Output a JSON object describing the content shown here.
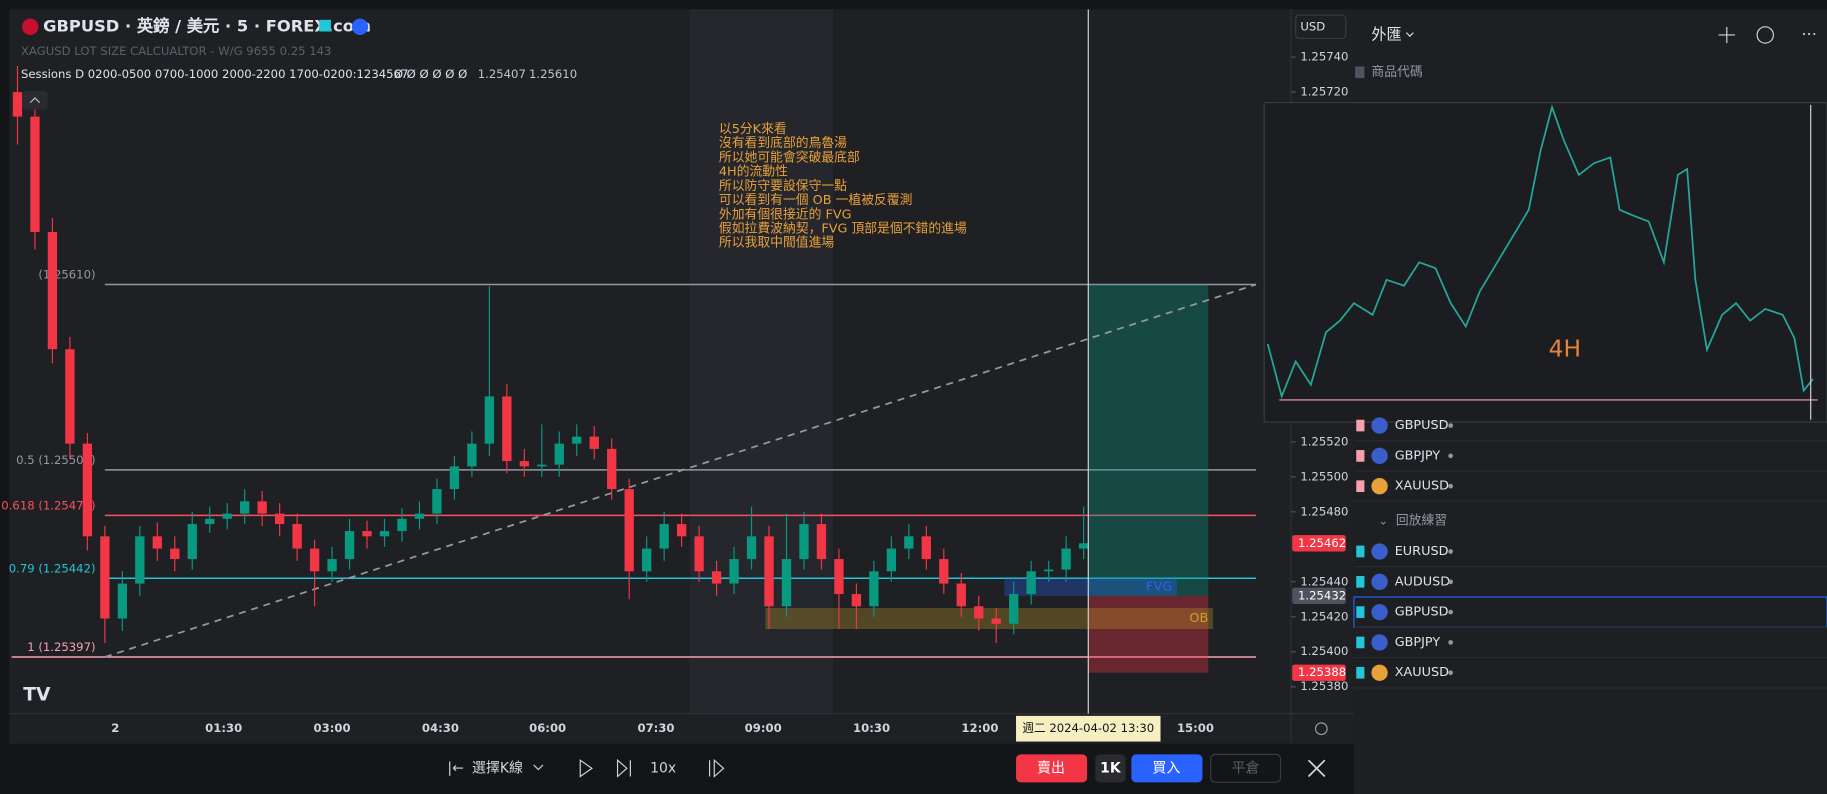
{
  "header": {
    "symbol": "GBPUSD · 英鎊 / 美元 · 5 · FOREX.com",
    "indicator": "XAGUSD LOT SIZE CALCUALTOR - W/G 9655 0.25 143",
    "sessions": "Sessions D 0200-0500 0700-1000 2000-2200 1700-0200:1234567",
    "sessions_flags": "Ø Ø Ø Ø Ø Ø",
    "sessions_low": "1.25407",
    "sessions_high": "1.25610"
  },
  "chart": {
    "currency": "USD",
    "price_ticks": [
      {
        "value": 1.2574,
        "label": "1.25740"
      },
      {
        "value": 1.2572,
        "label": "1.25720"
      },
      {
        "value": 1.2552,
        "label": "1.25520"
      },
      {
        "value": 1.255,
        "label": "1.25500"
      },
      {
        "value": 1.2548,
        "label": "1.25480"
      },
      {
        "value": 1.2544,
        "label": "1.25440"
      },
      {
        "value": 1.2542,
        "label": "1.25420"
      },
      {
        "value": 1.254,
        "label": "1.25400"
      },
      {
        "value": 1.2538,
        "label": "1.25380"
      }
    ],
    "price_badges": [
      {
        "value": 1.25462,
        "label": "1.25462",
        "color": "#f23645"
      },
      {
        "value": 1.25432,
        "label": "1.25432",
        "color": "#50535e"
      },
      {
        "value": 1.25388,
        "label": "1.25388",
        "color": "#f23645"
      }
    ],
    "time_labels": [
      "2",
      "01:30",
      "03:00",
      "04:30",
      "06:00",
      "07:30",
      "09:00",
      "10:30",
      "12:00",
      "15:00"
    ],
    "crosshair_label": "週二 2024-04-02   13:30",
    "candles": [
      [
        1.2572,
        1.25735,
        1.2569,
        1.25706
      ],
      [
        1.25706,
        1.25712,
        1.2563,
        1.2564
      ],
      [
        1.2564,
        1.25648,
        1.25565,
        1.25573
      ],
      [
        1.25573,
        1.2558,
        1.2551,
        1.25519
      ],
      [
        1.25519,
        1.25525,
        1.25458,
        1.25466
      ],
      [
        1.25466,
        1.25472,
        1.25405,
        1.25419
      ],
      [
        1.25419,
        1.25446,
        1.25412,
        1.25439
      ],
      [
        1.25439,
        1.25472,
        1.25432,
        1.25466
      ],
      [
        1.25466,
        1.25474,
        1.25452,
        1.25459
      ],
      [
        1.25459,
        1.25466,
        1.25446,
        1.25453
      ],
      [
        1.25453,
        1.2548,
        1.25447,
        1.25473
      ],
      [
        1.25473,
        1.25483,
        1.25468,
        1.25476
      ],
      [
        1.25476,
        1.25485,
        1.2547,
        1.25479
      ],
      [
        1.25479,
        1.25493,
        1.25473,
        1.25486
      ],
      [
        1.25486,
        1.25492,
        1.25472,
        1.25479
      ],
      [
        1.25479,
        1.25485,
        1.25466,
        1.25473
      ],
      [
        1.25473,
        1.25479,
        1.25452,
        1.25459
      ],
      [
        1.25459,
        1.25464,
        1.25426,
        1.25446
      ],
      [
        1.25446,
        1.2546,
        1.2544,
        1.25453
      ],
      [
        1.25453,
        1.25476,
        1.25447,
        1.25469
      ],
      [
        1.25469,
        1.25475,
        1.25459,
        1.25466
      ],
      [
        1.25466,
        1.25476,
        1.2546,
        1.25469
      ],
      [
        1.25469,
        1.25482,
        1.25463,
        1.25476
      ],
      [
        1.25476,
        1.25486,
        1.2547,
        1.25479
      ],
      [
        1.25479,
        1.25499,
        1.25473,
        1.25493
      ],
      [
        1.25493,
        1.25512,
        1.25487,
        1.25506
      ],
      [
        1.25506,
        1.25526,
        1.255,
        1.25519
      ],
      [
        1.25519,
        1.25609,
        1.25512,
        1.25546
      ],
      [
        1.25546,
        1.25553,
        1.25502,
        1.25509
      ],
      [
        1.25509,
        1.25516,
        1.255,
        1.25506
      ],
      [
        1.25506,
        1.2553,
        1.255,
        1.25507
      ],
      [
        1.25507,
        1.25526,
        1.255,
        1.25519
      ],
      [
        1.25519,
        1.2553,
        1.25512,
        1.25523
      ],
      [
        1.25523,
        1.25529,
        1.2551,
        1.25516
      ],
      [
        1.25516,
        1.25522,
        1.25487,
        1.25493
      ],
      [
        1.25493,
        1.25499,
        1.2543,
        1.25446
      ],
      [
        1.25446,
        1.25466,
        1.2544,
        1.25459
      ],
      [
        1.25459,
        1.2548,
        1.25452,
        1.25473
      ],
      [
        1.25473,
        1.25479,
        1.2546,
        1.25466
      ],
      [
        1.25466,
        1.25472,
        1.2544,
        1.25446
      ],
      [
        1.25446,
        1.25452,
        1.25432,
        1.25439
      ],
      [
        1.25439,
        1.2546,
        1.25433,
        1.25453
      ],
      [
        1.25453,
        1.25483,
        1.25447,
        1.25466
      ],
      [
        1.25466,
        1.25472,
        1.25413,
        1.25426
      ],
      [
        1.25426,
        1.25479,
        1.2542,
        1.25453
      ],
      [
        1.25453,
        1.2548,
        1.25447,
        1.25473
      ],
      [
        1.25473,
        1.25479,
        1.25447,
        1.25453
      ],
      [
        1.25453,
        1.25459,
        1.25413,
        1.25433
      ],
      [
        1.25433,
        1.25439,
        1.25413,
        1.25426
      ],
      [
        1.25426,
        1.25452,
        1.2542,
        1.25446
      ],
      [
        1.25446,
        1.25466,
        1.2544,
        1.25459
      ],
      [
        1.25459,
        1.25473,
        1.25453,
        1.25466
      ],
      [
        1.25466,
        1.25472,
        1.25447,
        1.25453
      ],
      [
        1.25453,
        1.25459,
        1.25433,
        1.25439
      ],
      [
        1.25439,
        1.25445,
        1.2542,
        1.25426
      ],
      [
        1.25426,
        1.25432,
        1.25412,
        1.25419
      ],
      [
        1.25419,
        1.25425,
        1.25405,
        1.25416
      ],
      [
        1.25416,
        1.2544,
        1.2541,
        1.25433
      ],
      [
        1.25433,
        1.25452,
        1.25427,
        1.25446
      ],
      [
        1.25446,
        1.25452,
        1.2544,
        1.25447
      ],
      [
        1.25447,
        1.25466,
        1.2544,
        1.25459
      ],
      [
        1.25459,
        1.25483,
        1.25453,
        1.25462
      ]
    ],
    "fib_levels": [
      {
        "label": "(1.25610)",
        "price": 1.2561,
        "color": "#9598a1"
      },
      {
        "label": "0.5 (1.25504)",
        "price": 1.25504,
        "color": "#9598a1"
      },
      {
        "label": "0.618 (1.25478)",
        "price": 1.25478,
        "color": "#f7525f"
      },
      {
        "label": "0.79 (1.25442)",
        "price": 1.25442,
        "color": "#22c6d8"
      },
      {
        "label": "1 (1.25397)",
        "price": 1.25397,
        "color": "#f7a1b0"
      }
    ],
    "position": {
      "target": 1.2561,
      "entry": 1.25432,
      "stop": 1.25388
    },
    "zones": [
      {
        "label": "FVG",
        "top": 1.25442,
        "bottom": 1.25432,
        "color": "#2962ff"
      },
      {
        "label": "OB",
        "top": 1.25425,
        "bottom": 1.25413,
        "color": "#c9a227"
      }
    ],
    "annotation": [
      "以5分K來看",
      "沒有看到底部的鳥魯湯",
      "所以她可能會突破最底部",
      "4H的流動性",
      "所以防守要設保守一點",
      "可以看到有一個 OB 一植被反覆測",
      "外加有個很接近的 FVG",
      "假如拉費波納契，FVG 頂部是個不錯的進場",
      "所以我取中間值進場"
    ],
    "inset_label": "4H"
  },
  "toolbar": {
    "select_bar": "選擇K線",
    "speed": "10x",
    "sell": "賣出",
    "quantity": "1K",
    "buy": "買入",
    "close": "平倉"
  },
  "sidebar": {
    "title": "外匯",
    "column": "商品代碼",
    "group1": [
      "GBPUSD",
      "GBPJPY",
      "XAUUSD"
    ],
    "group2_title": "回放練習",
    "group2": [
      "EURUSD",
      "AUDUSD",
      "GBPUSD",
      "GBPJPY",
      "XAUUSD"
    ]
  }
}
